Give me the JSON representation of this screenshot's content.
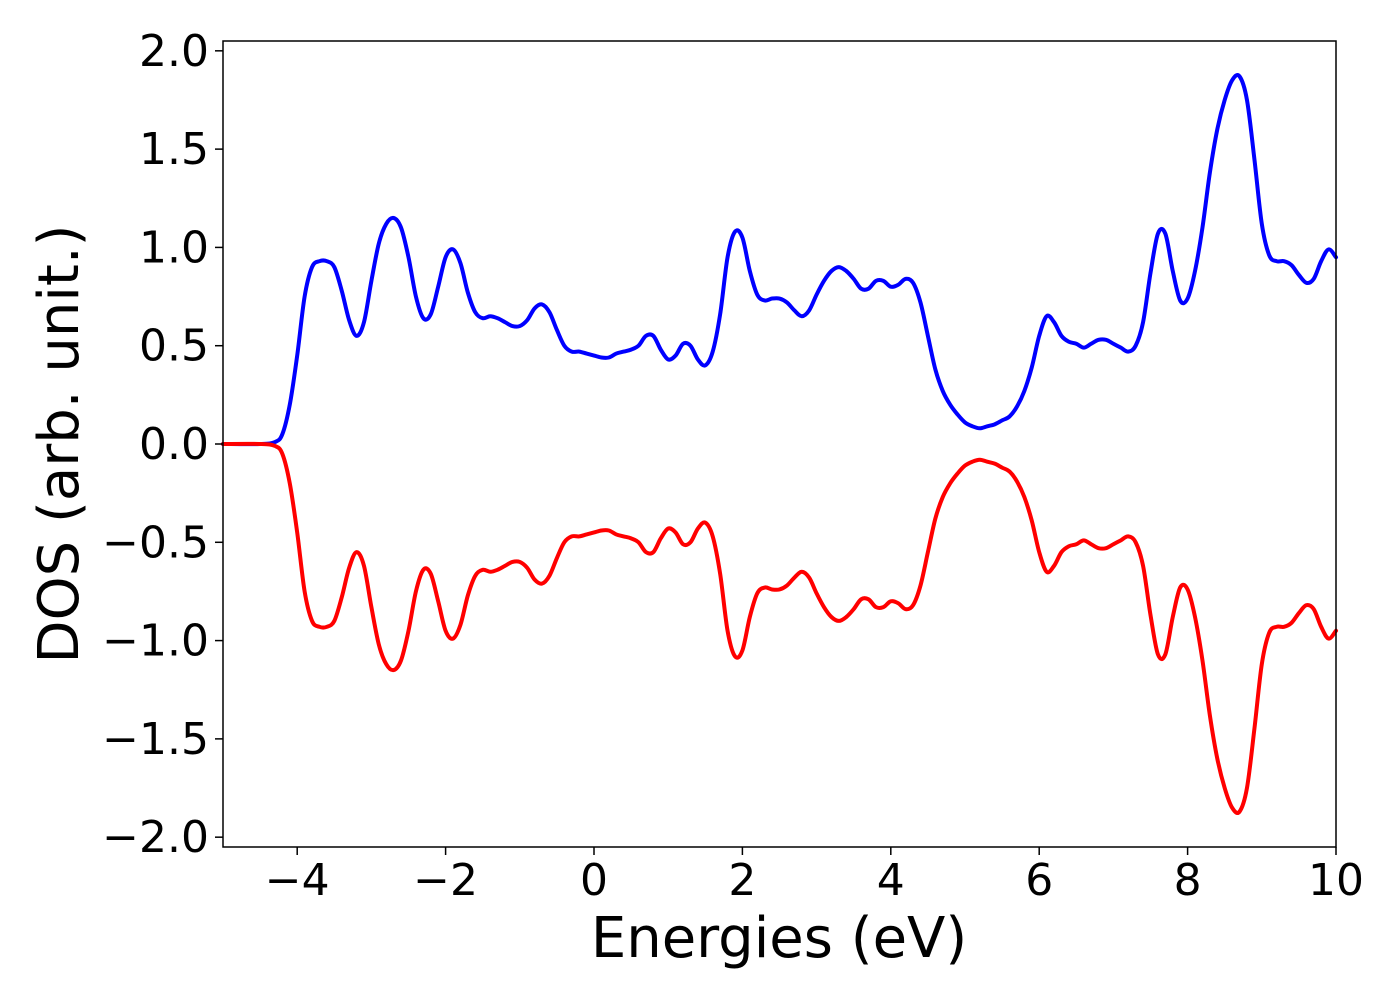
{
  "chart_data": {
    "type": "line",
    "title": "",
    "xlabel": "Energies (eV)",
    "ylabel": "DOS (arb. unit.)",
    "xlim": [
      -5,
      10
    ],
    "ylim": [
      -2.05,
      2.05
    ],
    "grid": false,
    "legend": "none",
    "x_ticks": [
      -4,
      -2,
      0,
      2,
      4,
      6,
      8,
      10
    ],
    "x_tick_labels": [
      "−4",
      "−2",
      "0",
      "2",
      "4",
      "6",
      "8",
      "10"
    ],
    "y_ticks": [
      2.0,
      1.5,
      1.0,
      0.5,
      0.0,
      -0.5,
      -1.0,
      -1.5,
      -2.0
    ],
    "y_tick_labels": [
      "2.0",
      "1.5",
      "1.0",
      "0.5",
      "0.0",
      "−0.5",
      "−1.0",
      "−1.5",
      "−2.0"
    ],
    "series": [
      {
        "color": "#0000ff",
        "points": [
          [
            -5.0,
            0.0
          ],
          [
            -4.5,
            0.0
          ],
          [
            -4.3,
            0.01
          ],
          [
            -4.2,
            0.05
          ],
          [
            -4.1,
            0.2
          ],
          [
            -4.0,
            0.45
          ],
          [
            -3.9,
            0.75
          ],
          [
            -3.8,
            0.9
          ],
          [
            -3.7,
            0.93
          ],
          [
            -3.6,
            0.93
          ],
          [
            -3.5,
            0.9
          ],
          [
            -3.4,
            0.78
          ],
          [
            -3.3,
            0.63
          ],
          [
            -3.2,
            0.55
          ],
          [
            -3.1,
            0.62
          ],
          [
            -3.0,
            0.83
          ],
          [
            -2.9,
            1.02
          ],
          [
            -2.8,
            1.12
          ],
          [
            -2.7,
            1.15
          ],
          [
            -2.6,
            1.1
          ],
          [
            -2.5,
            0.95
          ],
          [
            -2.4,
            0.75
          ],
          [
            -2.3,
            0.64
          ],
          [
            -2.2,
            0.66
          ],
          [
            -2.1,
            0.8
          ],
          [
            -2.0,
            0.95
          ],
          [
            -1.9,
            0.99
          ],
          [
            -1.8,
            0.92
          ],
          [
            -1.7,
            0.77
          ],
          [
            -1.6,
            0.67
          ],
          [
            -1.5,
            0.64
          ],
          [
            -1.4,
            0.65
          ],
          [
            -1.3,
            0.64
          ],
          [
            -1.2,
            0.62
          ],
          [
            -1.1,
            0.6
          ],
          [
            -1.0,
            0.6
          ],
          [
            -0.9,
            0.63
          ],
          [
            -0.8,
            0.69
          ],
          [
            -0.7,
            0.71
          ],
          [
            -0.6,
            0.67
          ],
          [
            -0.5,
            0.58
          ],
          [
            -0.4,
            0.5
          ],
          [
            -0.3,
            0.47
          ],
          [
            -0.2,
            0.47
          ],
          [
            -0.1,
            0.46
          ],
          [
            0.0,
            0.45
          ],
          [
            0.1,
            0.44
          ],
          [
            0.2,
            0.44
          ],
          [
            0.3,
            0.46
          ],
          [
            0.4,
            0.47
          ],
          [
            0.5,
            0.48
          ],
          [
            0.6,
            0.5
          ],
          [
            0.7,
            0.55
          ],
          [
            0.8,
            0.55
          ],
          [
            0.9,
            0.48
          ],
          [
            1.0,
            0.43
          ],
          [
            1.1,
            0.45
          ],
          [
            1.2,
            0.51
          ],
          [
            1.3,
            0.5
          ],
          [
            1.4,
            0.43
          ],
          [
            1.5,
            0.4
          ],
          [
            1.6,
            0.47
          ],
          [
            1.7,
            0.66
          ],
          [
            1.8,
            0.95
          ],
          [
            1.9,
            1.08
          ],
          [
            2.0,
            1.05
          ],
          [
            2.1,
            0.88
          ],
          [
            2.2,
            0.76
          ],
          [
            2.3,
            0.73
          ],
          [
            2.4,
            0.74
          ],
          [
            2.5,
            0.74
          ],
          [
            2.6,
            0.72
          ],
          [
            2.7,
            0.68
          ],
          [
            2.8,
            0.65
          ],
          [
            2.9,
            0.68
          ],
          [
            3.0,
            0.76
          ],
          [
            3.1,
            0.83
          ],
          [
            3.2,
            0.88
          ],
          [
            3.3,
            0.9
          ],
          [
            3.4,
            0.88
          ],
          [
            3.5,
            0.84
          ],
          [
            3.6,
            0.79
          ],
          [
            3.7,
            0.79
          ],
          [
            3.8,
            0.83
          ],
          [
            3.9,
            0.83
          ],
          [
            4.0,
            0.8
          ],
          [
            4.1,
            0.81
          ],
          [
            4.2,
            0.84
          ],
          [
            4.3,
            0.82
          ],
          [
            4.4,
            0.72
          ],
          [
            4.5,
            0.55
          ],
          [
            4.6,
            0.38
          ],
          [
            4.7,
            0.27
          ],
          [
            4.8,
            0.2
          ],
          [
            4.9,
            0.15
          ],
          [
            5.0,
            0.11
          ],
          [
            5.1,
            0.09
          ],
          [
            5.2,
            0.08
          ],
          [
            5.3,
            0.09
          ],
          [
            5.4,
            0.1
          ],
          [
            5.5,
            0.12
          ],
          [
            5.6,
            0.14
          ],
          [
            5.7,
            0.19
          ],
          [
            5.8,
            0.27
          ],
          [
            5.9,
            0.39
          ],
          [
            6.0,
            0.55
          ],
          [
            6.1,
            0.65
          ],
          [
            6.2,
            0.62
          ],
          [
            6.3,
            0.55
          ],
          [
            6.4,
            0.52
          ],
          [
            6.5,
            0.51
          ],
          [
            6.6,
            0.49
          ],
          [
            6.7,
            0.51
          ],
          [
            6.8,
            0.53
          ],
          [
            6.9,
            0.53
          ],
          [
            7.0,
            0.51
          ],
          [
            7.1,
            0.49
          ],
          [
            7.2,
            0.47
          ],
          [
            7.3,
            0.5
          ],
          [
            7.4,
            0.62
          ],
          [
            7.5,
            0.87
          ],
          [
            7.6,
            1.07
          ],
          [
            7.7,
            1.07
          ],
          [
            7.8,
            0.88
          ],
          [
            7.9,
            0.73
          ],
          [
            8.0,
            0.74
          ],
          [
            8.1,
            0.88
          ],
          [
            8.2,
            1.1
          ],
          [
            8.3,
            1.38
          ],
          [
            8.4,
            1.6
          ],
          [
            8.5,
            1.75
          ],
          [
            8.6,
            1.85
          ],
          [
            8.7,
            1.87
          ],
          [
            8.8,
            1.75
          ],
          [
            8.9,
            1.45
          ],
          [
            9.0,
            1.12
          ],
          [
            9.1,
            0.96
          ],
          [
            9.2,
            0.93
          ],
          [
            9.3,
            0.93
          ],
          [
            9.4,
            0.91
          ],
          [
            9.5,
            0.86
          ],
          [
            9.6,
            0.82
          ],
          [
            9.7,
            0.84
          ],
          [
            9.8,
            0.93
          ],
          [
            9.9,
            0.99
          ],
          [
            10.0,
            0.95
          ]
        ]
      },
      {
        "color": "#ff0000",
        "points": [
          [
            -5.0,
            0.0
          ],
          [
            -4.5,
            0.0
          ],
          [
            -4.3,
            -0.01
          ],
          [
            -4.2,
            -0.05
          ],
          [
            -4.1,
            -0.2
          ],
          [
            -4.0,
            -0.45
          ],
          [
            -3.9,
            -0.75
          ],
          [
            -3.8,
            -0.9
          ],
          [
            -3.7,
            -0.93
          ],
          [
            -3.6,
            -0.93
          ],
          [
            -3.5,
            -0.9
          ],
          [
            -3.4,
            -0.78
          ],
          [
            -3.3,
            -0.63
          ],
          [
            -3.2,
            -0.55
          ],
          [
            -3.1,
            -0.62
          ],
          [
            -3.0,
            -0.83
          ],
          [
            -2.9,
            -1.02
          ],
          [
            -2.8,
            -1.12
          ],
          [
            -2.7,
            -1.15
          ],
          [
            -2.6,
            -1.1
          ],
          [
            -2.5,
            -0.95
          ],
          [
            -2.4,
            -0.75
          ],
          [
            -2.3,
            -0.64
          ],
          [
            -2.2,
            -0.66
          ],
          [
            -2.1,
            -0.8
          ],
          [
            -2.0,
            -0.95
          ],
          [
            -1.9,
            -0.99
          ],
          [
            -1.8,
            -0.92
          ],
          [
            -1.7,
            -0.77
          ],
          [
            -1.6,
            -0.67
          ],
          [
            -1.5,
            -0.64
          ],
          [
            -1.4,
            -0.65
          ],
          [
            -1.3,
            -0.64
          ],
          [
            -1.2,
            -0.62
          ],
          [
            -1.1,
            -0.6
          ],
          [
            -1.0,
            -0.6
          ],
          [
            -0.9,
            -0.63
          ],
          [
            -0.8,
            -0.69
          ],
          [
            -0.7,
            -0.71
          ],
          [
            -0.6,
            -0.67
          ],
          [
            -0.5,
            -0.58
          ],
          [
            -0.4,
            -0.5
          ],
          [
            -0.3,
            -0.47
          ],
          [
            -0.2,
            -0.47
          ],
          [
            -0.1,
            -0.46
          ],
          [
            0.0,
            -0.45
          ],
          [
            0.1,
            -0.44
          ],
          [
            0.2,
            -0.44
          ],
          [
            0.3,
            -0.46
          ],
          [
            0.4,
            -0.47
          ],
          [
            0.5,
            -0.48
          ],
          [
            0.6,
            -0.5
          ],
          [
            0.7,
            -0.55
          ],
          [
            0.8,
            -0.55
          ],
          [
            0.9,
            -0.48
          ],
          [
            1.0,
            -0.43
          ],
          [
            1.1,
            -0.45
          ],
          [
            1.2,
            -0.51
          ],
          [
            1.3,
            -0.5
          ],
          [
            1.4,
            -0.43
          ],
          [
            1.5,
            -0.4
          ],
          [
            1.6,
            -0.47
          ],
          [
            1.7,
            -0.66
          ],
          [
            1.8,
            -0.95
          ],
          [
            1.9,
            -1.08
          ],
          [
            2.0,
            -1.05
          ],
          [
            2.1,
            -0.88
          ],
          [
            2.2,
            -0.76
          ],
          [
            2.3,
            -0.73
          ],
          [
            2.4,
            -0.74
          ],
          [
            2.5,
            -0.74
          ],
          [
            2.6,
            -0.72
          ],
          [
            2.7,
            -0.68
          ],
          [
            2.8,
            -0.65
          ],
          [
            2.9,
            -0.68
          ],
          [
            3.0,
            -0.76
          ],
          [
            3.1,
            -0.83
          ],
          [
            3.2,
            -0.88
          ],
          [
            3.3,
            -0.9
          ],
          [
            3.4,
            -0.88
          ],
          [
            3.5,
            -0.84
          ],
          [
            3.6,
            -0.79
          ],
          [
            3.7,
            -0.79
          ],
          [
            3.8,
            -0.83
          ],
          [
            3.9,
            -0.83
          ],
          [
            4.0,
            -0.8
          ],
          [
            4.1,
            -0.81
          ],
          [
            4.2,
            -0.84
          ],
          [
            4.3,
            -0.82
          ],
          [
            4.4,
            -0.72
          ],
          [
            4.5,
            -0.55
          ],
          [
            4.6,
            -0.38
          ],
          [
            4.7,
            -0.27
          ],
          [
            4.8,
            -0.2
          ],
          [
            4.9,
            -0.15
          ],
          [
            5.0,
            -0.11
          ],
          [
            5.1,
            -0.09
          ],
          [
            5.2,
            -0.08
          ],
          [
            5.3,
            -0.09
          ],
          [
            5.4,
            -0.1
          ],
          [
            5.5,
            -0.12
          ],
          [
            5.6,
            -0.14
          ],
          [
            5.7,
            -0.19
          ],
          [
            5.8,
            -0.27
          ],
          [
            5.9,
            -0.39
          ],
          [
            6.0,
            -0.55
          ],
          [
            6.1,
            -0.65
          ],
          [
            6.2,
            -0.62
          ],
          [
            6.3,
            -0.55
          ],
          [
            6.4,
            -0.52
          ],
          [
            6.5,
            -0.51
          ],
          [
            6.6,
            -0.49
          ],
          [
            6.7,
            -0.51
          ],
          [
            6.8,
            -0.53
          ],
          [
            6.9,
            -0.53
          ],
          [
            7.0,
            -0.51
          ],
          [
            7.1,
            -0.49
          ],
          [
            7.2,
            -0.47
          ],
          [
            7.3,
            -0.5
          ],
          [
            7.4,
            -0.62
          ],
          [
            7.5,
            -0.87
          ],
          [
            7.6,
            -1.07
          ],
          [
            7.7,
            -1.07
          ],
          [
            7.8,
            -0.88
          ],
          [
            7.9,
            -0.73
          ],
          [
            8.0,
            -0.74
          ],
          [
            8.1,
            -0.88
          ],
          [
            8.2,
            -1.1
          ],
          [
            8.3,
            -1.38
          ],
          [
            8.4,
            -1.6
          ],
          [
            8.5,
            -1.75
          ],
          [
            8.6,
            -1.85
          ],
          [
            8.7,
            -1.87
          ],
          [
            8.8,
            -1.75
          ],
          [
            8.9,
            -1.45
          ],
          [
            9.0,
            -1.12
          ],
          [
            9.1,
            -0.96
          ],
          [
            9.2,
            -0.93
          ],
          [
            9.3,
            -0.93
          ],
          [
            9.4,
            -0.91
          ],
          [
            9.5,
            -0.86
          ],
          [
            9.6,
            -0.82
          ],
          [
            9.7,
            -0.84
          ],
          [
            9.8,
            -0.93
          ],
          [
            9.9,
            -0.99
          ],
          [
            10.0,
            -0.95
          ]
        ]
      }
    ]
  }
}
